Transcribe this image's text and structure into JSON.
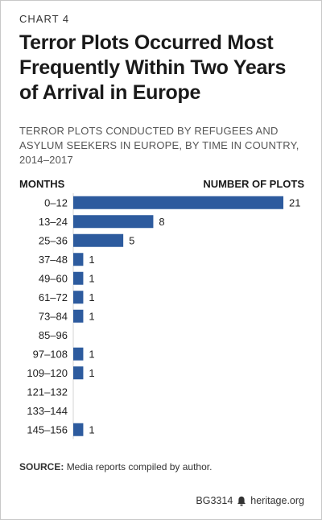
{
  "header": {
    "kicker": "CHART 4",
    "title": "Terror Plots Occurred Most Frequently Within Two Years of Arrival in Europe",
    "subtitle": "TERROR PLOTS CONDUCTED BY REFUGEES AND ASYLUM SEEKERS IN EUROPE, BY TIME IN COUNTRY, 2014–2017"
  },
  "chart_data": {
    "type": "bar",
    "orientation": "horizontal",
    "xlabel": "NUMBER OF PLOTS",
    "ylabel": "MONTHS",
    "categories": [
      "0–12",
      "13–24",
      "25–36",
      "37–48",
      "49–60",
      "61–72",
      "73–84",
      "85–96",
      "97–108",
      "109–120",
      "121–132",
      "133–144",
      "145–156"
    ],
    "values": [
      21,
      8,
      5,
      1,
      1,
      1,
      1,
      0,
      1,
      1,
      0,
      0,
      1
    ],
    "value_labels": [
      "21",
      "8",
      "5",
      "1",
      "1",
      "1",
      "1",
      "",
      "1",
      "1",
      "",
      "",
      "1"
    ],
    "xlim": [
      0,
      21
    ],
    "grid": false,
    "bar_color": "#2d5b9e"
  },
  "source": {
    "label": "SOURCE:",
    "text": "Media reports compiled by author."
  },
  "footer": {
    "code": "BG3314",
    "site": "heritage.org",
    "icon": "bell-icon"
  }
}
